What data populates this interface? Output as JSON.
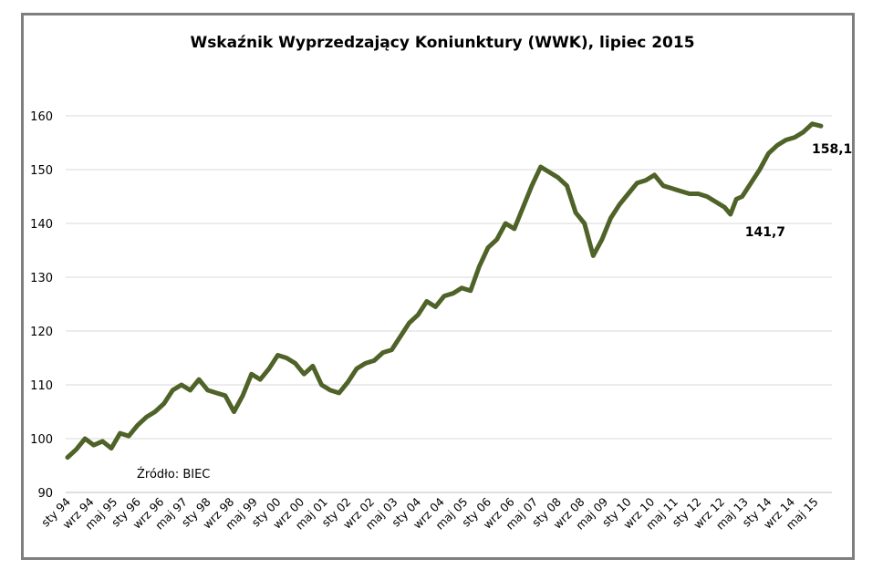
{
  "chart_data": {
    "type": "line",
    "title": "Wskaźnik Wyprzedzający Koniunktury (WWK), lipiec 2015",
    "source": "Źródło: BIEC",
    "ylim": [
      90,
      165
    ],
    "yticks": [
      90,
      100,
      110,
      120,
      130,
      140,
      150,
      160
    ],
    "grid": true,
    "line_color": "#4f6228",
    "x_tick_labels": [
      "sty 94",
      "wrz 94",
      "maj 95",
      "sty 96",
      "wrz 96",
      "maj 97",
      "sty 98",
      "wrz 98",
      "maj 99",
      "sty 00",
      "wrz 00",
      "maj 01",
      "sty 02",
      "wrz 02",
      "maj 03",
      "sty 04",
      "wrz 04",
      "maj 05",
      "sty 06",
      "wrz 06",
      "maj 07",
      "sty 08",
      "wrz 08",
      "maj 09",
      "sty 10",
      "wrz 10",
      "maj 11",
      "sty 12",
      "wrz 12",
      "maj 13",
      "sty 14",
      "wrz 14",
      "maj 15"
    ],
    "annotations": [
      {
        "label": "141,7",
        "x": "2012-12",
        "y": 141.7
      },
      {
        "label": "158,1",
        "x": "2015-07",
        "y": 158.1
      }
    ],
    "series": [
      {
        "x": [
          "1994-01",
          "1994-04",
          "1994-07",
          "1994-10",
          "1995-01",
          "1995-04",
          "1995-07",
          "1995-10",
          "1996-01",
          "1996-04",
          "1996-07",
          "1996-10",
          "1997-01",
          "1997-04",
          "1997-07",
          "1997-10",
          "1998-01",
          "1998-04",
          "1998-07",
          "1998-10",
          "1999-01",
          "1999-04",
          "1999-07",
          "1999-10",
          "2000-01",
          "2000-04",
          "2000-07",
          "2000-10",
          "2001-01",
          "2001-04",
          "2001-07",
          "2001-10",
          "2002-01",
          "2002-04",
          "2002-07",
          "2002-10",
          "2003-01",
          "2003-04",
          "2003-07",
          "2003-10",
          "2004-01",
          "2004-04",
          "2004-07",
          "2004-10",
          "2005-01",
          "2005-04",
          "2005-07",
          "2005-10",
          "2006-01",
          "2006-04",
          "2006-07",
          "2006-10",
          "2007-01",
          "2007-04",
          "2007-07",
          "2007-10",
          "2008-01",
          "2008-04",
          "2008-07",
          "2008-10",
          "2009-01",
          "2009-04",
          "2009-07",
          "2009-10",
          "2010-01",
          "2010-04",
          "2010-07",
          "2010-10",
          "2011-01",
          "2011-04",
          "2011-07",
          "2011-10",
          "2012-01",
          "2012-04",
          "2012-07",
          "2012-10",
          "2012-12",
          "2013-02",
          "2013-04",
          "2013-07",
          "2013-10",
          "2014-01",
          "2014-04",
          "2014-07",
          "2014-10",
          "2015-01",
          "2015-04",
          "2015-07"
        ],
        "values": [
          96.5,
          98.0,
          100.0,
          98.8,
          99.5,
          98.2,
          101.0,
          100.5,
          102.5,
          104.0,
          105.0,
          106.5,
          109.0,
          110.0,
          109.0,
          111.0,
          109.0,
          108.5,
          108.0,
          105.0,
          108.0,
          112.0,
          111.0,
          113.0,
          115.5,
          115.0,
          114.0,
          112.0,
          113.5,
          110.0,
          109.0,
          108.5,
          110.5,
          113.0,
          114.0,
          114.5,
          116.0,
          116.5,
          119.0,
          121.5,
          123.0,
          125.5,
          124.5,
          126.5,
          127.0,
          128.0,
          127.5,
          132.0,
          135.5,
          137.0,
          140.0,
          139.0,
          143.0,
          147.0,
          150.5,
          149.5,
          148.5,
          147.0,
          142.0,
          140.0,
          134.0,
          137.0,
          141.0,
          143.5,
          145.5,
          147.5,
          148.0,
          149.0,
          147.0,
          146.5,
          146.0,
          145.5,
          145.5,
          145.0,
          144.0,
          143.0,
          141.7,
          144.5,
          145.0,
          147.5,
          150.0,
          153.0,
          154.5,
          155.5,
          156.0,
          157.0,
          158.5,
          158.1
        ]
      }
    ]
  }
}
